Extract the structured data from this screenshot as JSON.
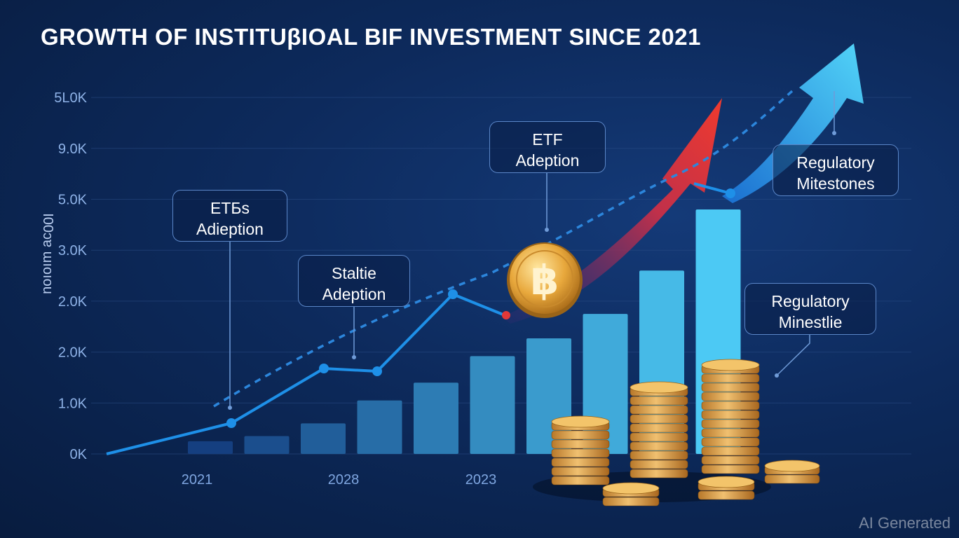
{
  "chart_data": {
    "type": "bar",
    "title": "GROWTH OF INSTITUβIOAL BIF INVESTMENT  SINCE 2021",
    "ylabel": "I00ɔɐ ɯıoıou",
    "xlabel": "",
    "y_tick_labels": [
      "0K",
      "1.0K",
      "2.0K",
      "2.0K",
      "3.0K",
      "5.0K",
      "9.0K",
      "5L0K"
    ],
    "x_tick_labels": [
      "2021",
      "2028",
      "2023"
    ],
    "ylim": [
      0,
      7
    ],
    "grid": true,
    "bars": [
      0.25,
      0.35,
      0.6,
      1.05,
      1.4,
      1.92,
      2.27,
      2.75,
      3.6,
      4.8
    ],
    "line_solid": [
      0.0,
      0.3,
      0.6,
      0.9,
      1.3,
      1.67,
      1.62,
      2.95,
      2.4
    ],
    "line_dashed": [
      0.85,
      1.6,
      2.4,
      3.1,
      4.1,
      5.4,
      6.7
    ],
    "arrows": [
      {
        "color": "#e03030",
        "trend": "up"
      },
      {
        "color": "#3cc0f0",
        "trend": "up"
      }
    ],
    "annotations": [
      {
        "line1": "ETБs",
        "line2": "Adieption"
      },
      {
        "line1": "Staltie",
        "line2": "Adeption"
      },
      {
        "line1": "ETF",
        "line2": "Adeption"
      },
      {
        "line1": "Regulatory",
        "line2": "Mitestones"
      },
      {
        "line1": "Regulatory",
        "line2": "Minestlie"
      }
    ]
  },
  "icons": {
    "coin": "bitcoin-coin-icon",
    "stacks": "coin-stack-icon"
  },
  "colors": {
    "bar_start": "#1f5fae",
    "bar_end": "#4cc9f4",
    "line": "#1e90e8",
    "accent_red": "#e23838"
  },
  "watermark": "AI Generated"
}
